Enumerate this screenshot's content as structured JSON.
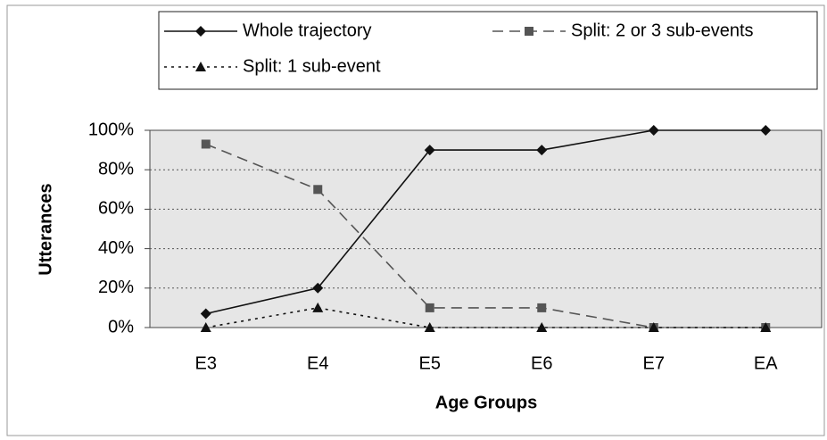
{
  "chart_data": {
    "type": "line",
    "x_label": "Age Groups",
    "y_label": "Utterances",
    "categories": [
      "E3",
      "E4",
      "E5",
      "E6",
      "E7",
      "EA"
    ],
    "series": [
      {
        "name": "Whole trajectory",
        "color": "#111111",
        "line_style": "solid",
        "marker": "diamond",
        "values": [
          7,
          20,
          90,
          90,
          100,
          100
        ]
      },
      {
        "name": "Split: 2 or 3 sub-events",
        "color": "#555555",
        "line_style": "dashed",
        "marker": "square",
        "values": [
          93,
          70,
          10,
          10,
          0,
          0
        ]
      },
      {
        "name": "Split: 1 sub-event",
        "color": "#111111",
        "line_style": "dotted",
        "marker": "triangle",
        "values": [
          0,
          10,
          0,
          0,
          0,
          0
        ]
      }
    ],
    "ylim": [
      0,
      100
    ],
    "yticks": [
      {
        "value": 0,
        "label": "0%"
      },
      {
        "value": 20,
        "label": "20%"
      },
      {
        "value": 40,
        "label": "40%"
      },
      {
        "value": 60,
        "label": "60%"
      },
      {
        "value": 80,
        "label": "80%"
      },
      {
        "value": 100,
        "label": "100%"
      }
    ],
    "grid": true
  }
}
